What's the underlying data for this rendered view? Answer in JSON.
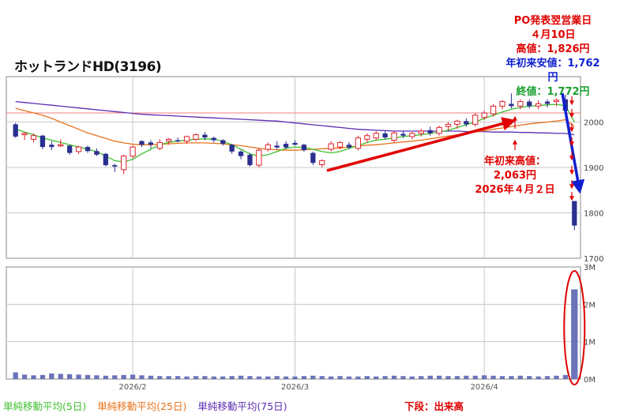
{
  "title": "ホットランドHD(3196)",
  "chart_data": [
    {
      "type": "candlestick",
      "panel": "price",
      "x_ticks": [
        "2026/2",
        "2026/3",
        "2026/4"
      ],
      "y_ticks": [
        "2000",
        "1900",
        "1800",
        "1700"
      ],
      "ylim": [
        1700,
        2100
      ],
      "grid": true,
      "reference_line": 2020,
      "candles": [
        {
          "o": 1995,
          "h": 1998,
          "l": 1965,
          "c": 1968,
          "up": false
        },
        {
          "o": 1972,
          "h": 1978,
          "l": 1960,
          "c": 1975,
          "up": true
        },
        {
          "o": 1970,
          "h": 1975,
          "l": 1955,
          "c": 1962,
          "up": true
        },
        {
          "o": 1970,
          "h": 1972,
          "l": 1940,
          "c": 1945,
          "up": false
        },
        {
          "o": 1945,
          "h": 1958,
          "l": 1938,
          "c": 1950,
          "up": false
        },
        {
          "o": 1950,
          "h": 1962,
          "l": 1945,
          "c": 1948,
          "up": true
        },
        {
          "o": 1948,
          "h": 1950,
          "l": 1928,
          "c": 1932,
          "up": false
        },
        {
          "o": 1935,
          "h": 1948,
          "l": 1930,
          "c": 1945,
          "up": true
        },
        {
          "o": 1945,
          "h": 1948,
          "l": 1932,
          "c": 1936,
          "up": false
        },
        {
          "o": 1936,
          "h": 1942,
          "l": 1925,
          "c": 1928,
          "up": false
        },
        {
          "o": 1930,
          "h": 1932,
          "l": 1902,
          "c": 1905,
          "up": false
        },
        {
          "o": 1905,
          "h": 1908,
          "l": 1890,
          "c": 1902,
          "up": false
        },
        {
          "o": 1895,
          "h": 1928,
          "l": 1885,
          "c": 1925,
          "up": true
        },
        {
          "o": 1925,
          "h": 1948,
          "l": 1920,
          "c": 1945,
          "up": true
        },
        {
          "o": 1958,
          "h": 1960,
          "l": 1945,
          "c": 1950,
          "up": false
        },
        {
          "o": 1950,
          "h": 1960,
          "l": 1942,
          "c": 1955,
          "up": false
        },
        {
          "o": 1942,
          "h": 1962,
          "l": 1938,
          "c": 1955,
          "up": true
        },
        {
          "o": 1958,
          "h": 1965,
          "l": 1950,
          "c": 1962,
          "up": true
        },
        {
          "o": 1960,
          "h": 1966,
          "l": 1955,
          "c": 1958,
          "up": false
        },
        {
          "o": 1958,
          "h": 1970,
          "l": 1952,
          "c": 1968,
          "up": true
        },
        {
          "o": 1962,
          "h": 1975,
          "l": 1958,
          "c": 1972,
          "up": true
        },
        {
          "o": 1972,
          "h": 1978,
          "l": 1960,
          "c": 1966,
          "up": false
        },
        {
          "o": 1965,
          "h": 1968,
          "l": 1955,
          "c": 1960,
          "up": false
        },
        {
          "o": 1960,
          "h": 1962,
          "l": 1948,
          "c": 1952,
          "up": false
        },
        {
          "o": 1950,
          "h": 1952,
          "l": 1930,
          "c": 1935,
          "up": false
        },
        {
          "o": 1935,
          "h": 1938,
          "l": 1918,
          "c": 1925,
          "up": false
        },
        {
          "o": 1928,
          "h": 1932,
          "l": 1902,
          "c": 1905,
          "up": false
        },
        {
          "o": 1905,
          "h": 1942,
          "l": 1900,
          "c": 1938,
          "up": true
        },
        {
          "o": 1940,
          "h": 1955,
          "l": 1935,
          "c": 1950,
          "up": true
        },
        {
          "o": 1948,
          "h": 1958,
          "l": 1940,
          "c": 1944,
          "up": false
        },
        {
          "o": 1944,
          "h": 1958,
          "l": 1940,
          "c": 1952,
          "up": false
        },
        {
          "o": 1954,
          "h": 1960,
          "l": 1948,
          "c": 1950,
          "up": false
        },
        {
          "o": 1950,
          "h": 1952,
          "l": 1935,
          "c": 1938,
          "up": false
        },
        {
          "o": 1932,
          "h": 1935,
          "l": 1905,
          "c": 1910,
          "up": false
        },
        {
          "o": 1906,
          "h": 1918,
          "l": 1900,
          "c": 1915,
          "up": true
        },
        {
          "o": 1940,
          "h": 1958,
          "l": 1935,
          "c": 1952,
          "up": true
        },
        {
          "o": 1945,
          "h": 1958,
          "l": 1940,
          "c": 1955,
          "up": true
        },
        {
          "o": 1950,
          "h": 1956,
          "l": 1940,
          "c": 1944,
          "up": false
        },
        {
          "o": 1942,
          "h": 1970,
          "l": 1938,
          "c": 1965,
          "up": true
        },
        {
          "o": 1962,
          "h": 1975,
          "l": 1955,
          "c": 1970,
          "up": true
        },
        {
          "o": 1965,
          "h": 1980,
          "l": 1960,
          "c": 1975,
          "up": true
        },
        {
          "o": 1975,
          "h": 1980,
          "l": 1962,
          "c": 1966,
          "up": false
        },
        {
          "o": 1960,
          "h": 1980,
          "l": 1955,
          "c": 1976,
          "up": true
        },
        {
          "o": 1974,
          "h": 1980,
          "l": 1965,
          "c": 1970,
          "up": false
        },
        {
          "o": 1968,
          "h": 1978,
          "l": 1962,
          "c": 1975,
          "up": true
        },
        {
          "o": 1975,
          "h": 1985,
          "l": 1968,
          "c": 1980,
          "up": true
        },
        {
          "o": 1982,
          "h": 1990,
          "l": 1970,
          "c": 1975,
          "up": false
        },
        {
          "o": 1975,
          "h": 1992,
          "l": 1970,
          "c": 1988,
          "up": true
        },
        {
          "o": 1990,
          "h": 2000,
          "l": 1982,
          "c": 1995,
          "up": true
        },
        {
          "o": 1995,
          "h": 2005,
          "l": 1985,
          "c": 2002,
          "up": true
        },
        {
          "o": 2002,
          "h": 2008,
          "l": 1990,
          "c": 1995,
          "up": false
        },
        {
          "o": 1995,
          "h": 2020,
          "l": 1990,
          "c": 2015,
          "up": true
        },
        {
          "o": 2010,
          "h": 2025,
          "l": 2005,
          "c": 2020,
          "up": true
        },
        {
          "o": 2018,
          "h": 2040,
          "l": 2012,
          "c": 2035,
          "up": true
        },
        {
          "o": 2035,
          "h": 2048,
          "l": 2028,
          "c": 2045,
          "up": true
        },
        {
          "o": 2040,
          "h": 2063,
          "l": 2030,
          "c": 2035,
          "up": false
        },
        {
          "o": 2035,
          "h": 2050,
          "l": 2028,
          "c": 2045,
          "up": true
        },
        {
          "o": 2045,
          "h": 2050,
          "l": 2030,
          "c": 2035,
          "up": false
        },
        {
          "o": 2035,
          "h": 2048,
          "l": 2028,
          "c": 2040,
          "up": true
        },
        {
          "o": 2040,
          "h": 2050,
          "l": 2032,
          "c": 2045,
          "up": false
        },
        {
          "o": 2045,
          "h": 2052,
          "l": 2035,
          "c": 2048,
          "up": true
        },
        {
          "o": 2050,
          "h": 2060,
          "l": 2020,
          "c": 2025,
          "up": false
        },
        {
          "o": 1826,
          "h": 1826,
          "l": 1762,
          "c": 1772,
          "up": false
        }
      ],
      "ma5": [
        1985,
        1978,
        1972,
        1965,
        1960,
        1955,
        1950,
        1945,
        1940,
        1935,
        1925,
        1915,
        1912,
        1918,
        1930,
        1940,
        1950,
        1955,
        1958,
        1960,
        1962,
        1963,
        1962,
        1958,
        1950,
        1940,
        1930,
        1925,
        1928,
        1935,
        1942,
        1945,
        1944,
        1940,
        1935,
        1932,
        1935,
        1942,
        1948,
        1955,
        1960,
        1962,
        1965,
        1968,
        1970,
        1972,
        1975,
        1978,
        1982,
        1988,
        1994,
        2000,
        2008,
        2015,
        2022,
        2028,
        2032,
        2035,
        2036,
        2038,
        2039,
        2036,
        2000
      ],
      "ma25": [
        2030,
        2025,
        2020,
        2015,
        2008,
        2000,
        1992,
        1984,
        1976,
        1970,
        1964,
        1958,
        1954,
        1951,
        1950,
        1950,
        1951,
        1952,
        1953,
        1954,
        1954,
        1954,
        1953,
        1952,
        1950,
        1948,
        1945,
        1942,
        1940,
        1939,
        1938,
        1938,
        1939,
        1940,
        1941,
        1942,
        1943,
        1945,
        1947,
        1949,
        1950,
        1952,
        1954,
        1956,
        1958,
        1960,
        1963,
        1966,
        1969,
        1972,
        1975,
        1978,
        1981,
        1984,
        1987,
        1990,
        1993,
        1996,
        1998,
        2000,
        2002,
        2005,
        1990
      ],
      "ma75": [
        2045,
        2043,
        2041,
        2039,
        2037,
        2035,
        2033,
        2031,
        2029,
        2027,
        2025,
        2023,
        2021,
        2019,
        2017,
        2016,
        2015,
        2014,
        2013,
        2012,
        2011,
        2010,
        2009,
        2008,
        2007,
        2006,
        2005,
        2004,
        2003,
        2002,
        2000,
        1998,
        1996,
        1994,
        1992,
        1990,
        1988,
        1986,
        1984,
        1983,
        1982,
        1981,
        1980,
        1980,
        1980,
        1980,
        1980,
        1980,
        1980,
        1980,
        1979,
        1979,
        1979,
        1978,
        1978,
        1978,
        1977,
        1977,
        1976,
        1976,
        1975,
        1975,
        1972
      ]
    },
    {
      "type": "bar",
      "panel": "volume",
      "y_ticks": [
        "3M",
        "2M",
        "1M",
        "0M"
      ],
      "ylim": [
        0,
        3000000
      ],
      "values": [
        180000,
        120000,
        100000,
        110000,
        150000,
        140000,
        130000,
        120000,
        110000,
        100000,
        90000,
        100000,
        110000,
        120000,
        100000,
        90000,
        80000,
        80000,
        80000,
        70000,
        80000,
        80000,
        70000,
        70000,
        80000,
        90000,
        80000,
        70000,
        70000,
        80000,
        70000,
        70000,
        80000,
        90000,
        80000,
        70000,
        80000,
        70000,
        70000,
        80000,
        70000,
        80000,
        90000,
        80000,
        70000,
        80000,
        90000,
        90000,
        80000,
        80000,
        90000,
        90000,
        100000,
        90000,
        80000,
        80000,
        90000,
        80000,
        70000,
        80000,
        90000,
        110000,
        2400000
      ]
    }
  ],
  "annotations": {
    "po_lines": [
      "PO発表翌営業日",
      "４月10日",
      "高値：1,826円",
      "年初来安値：1,762円",
      "終値：1,772円"
    ],
    "high_lines": [
      "年初来高値：",
      "2,063円",
      "2026年４月２日"
    ]
  },
  "legend": {
    "ma5": "単純移動平均(5日)",
    "ma25": "単純移動平均(25日)",
    "ma75": "単純移動平均(75日)"
  },
  "lower_label": "下段：出来高",
  "colors": {
    "up": "#e0202c",
    "down": "#2a2f8f",
    "ma5": "#3fbf2f",
    "ma25": "#e8721a",
    "ma75": "#5a2db0",
    "annotation_red": "#e00000",
    "annotation_blue": "#1020d0",
    "annotation_green": "#1aa030",
    "volume": "#6a73b8",
    "grid": "#c8c8c8"
  }
}
